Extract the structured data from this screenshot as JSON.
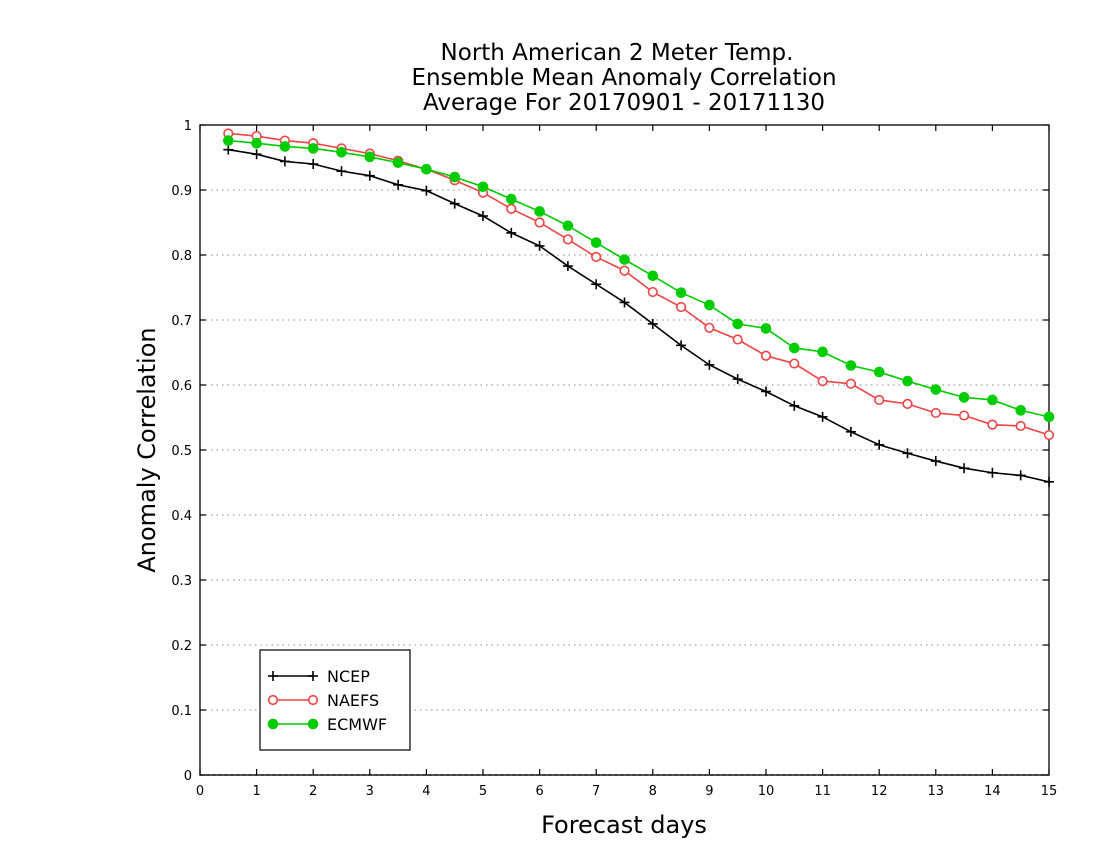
{
  "chart_data": {
    "type": "line",
    "title_lines": [
      "North American 2 Meter Temp.",
      "Ensemble Mean Anomaly Correlation",
      "Average For 20170901 - 20171130"
    ],
    "xlabel": "Forecast days",
    "ylabel": "Anomaly Correlation",
    "xlim": [
      0,
      15
    ],
    "ylim": [
      0,
      1
    ],
    "xticks": [
      "0",
      "1",
      "2",
      "3",
      "4",
      "5",
      "6",
      "7",
      "8",
      "9",
      "10",
      "11",
      "12",
      "13",
      "14",
      "15"
    ],
    "yticks": [
      "0",
      "0.1",
      "0.2",
      "0.3",
      "0.4",
      "0.5",
      "0.6",
      "0.7",
      "0.8",
      "0.9",
      "1"
    ],
    "grid": "horizontal dotted",
    "legend_position": "bottom-left",
    "x": [
      0.5,
      1,
      1.5,
      2,
      2.5,
      3,
      3.5,
      4,
      4.5,
      5,
      5.5,
      6,
      6.5,
      7,
      7.5,
      8,
      8.5,
      9,
      9.5,
      10,
      10.5,
      11,
      11.5,
      12,
      12.5,
      13,
      13.5,
      14,
      14.5,
      15
    ],
    "series": [
      {
        "name": "NCEP",
        "color": "#000000",
        "marker": "plus",
        "values": [
          0.962,
          0.955,
          0.944,
          0.94,
          0.929,
          0.922,
          0.908,
          0.899,
          0.879,
          0.86,
          0.834,
          0.814,
          0.783,
          0.755,
          0.727,
          0.694,
          0.661,
          0.631,
          0.609,
          0.59,
          0.568,
          0.551,
          0.528,
          0.508,
          0.495,
          0.483,
          0.472,
          0.465,
          0.461,
          0.451
        ]
      },
      {
        "name": "NAEFS",
        "color": "#ee4444",
        "marker": "open-circle",
        "values": [
          0.987,
          0.983,
          0.976,
          0.972,
          0.964,
          0.956,
          0.945,
          0.932,
          0.915,
          0.896,
          0.871,
          0.85,
          0.824,
          0.797,
          0.776,
          0.743,
          0.72,
          0.688,
          0.67,
          0.645,
          0.633,
          0.606,
          0.602,
          0.577,
          0.571,
          0.557,
          0.553,
          0.539,
          0.537,
          0.523
        ]
      },
      {
        "name": "ECMWF",
        "color": "#00cc00",
        "marker": "filled-circle",
        "values": [
          0.976,
          0.972,
          0.967,
          0.964,
          0.958,
          0.951,
          0.942,
          0.932,
          0.92,
          0.905,
          0.886,
          0.867,
          0.845,
          0.819,
          0.793,
          0.768,
          0.742,
          0.723,
          0.694,
          0.687,
          0.657,
          0.651,
          0.63,
          0.62,
          0.606,
          0.593,
          0.581,
          0.577,
          0.561,
          0.551
        ]
      }
    ]
  }
}
